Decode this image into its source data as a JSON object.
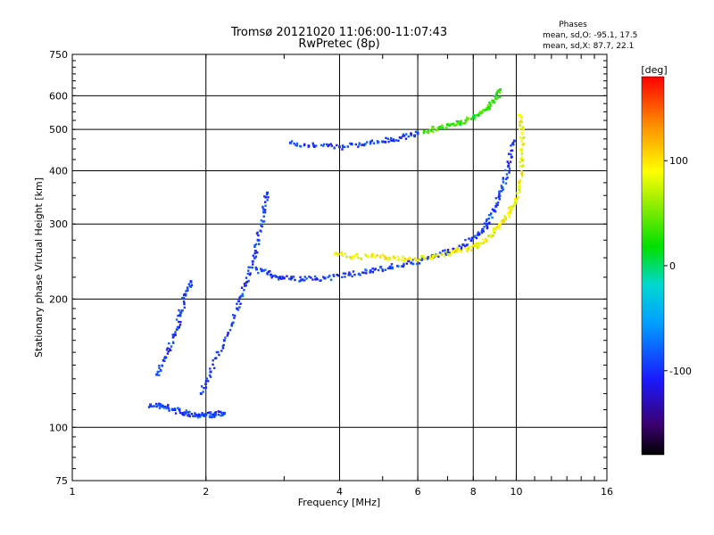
{
  "chart_data": {
    "type": "scatter",
    "title": "Tromsø 20121020 11:06:00-11:07:43",
    "subtitle": "RwPretec (8p)",
    "xlabel": "Frequency [MHz]",
    "ylabel": "Stationary phase Virtual Height [km]",
    "x_scale": "log",
    "y_scale": "log",
    "xlim": [
      1,
      16
    ],
    "ylim": [
      75,
      750
    ],
    "x_ticks": [
      1,
      2,
      4,
      6,
      8,
      10,
      16
    ],
    "x_tick_labels": [
      "1",
      "2",
      "4",
      "6",
      "8",
      "10",
      "16"
    ],
    "y_ticks": [
      75,
      100,
      200,
      300,
      400,
      500,
      600,
      750
    ],
    "y_tick_labels": [
      "75",
      "100",
      "200",
      "300",
      "400",
      "500",
      "600",
      "750"
    ],
    "grid": true,
    "phase_box": {
      "heading": "Phases",
      "line_o": "mean, sd,O: -95.1, 17.5",
      "line_x": "mean, sd,X:  87.7, 22.1"
    },
    "colorbar": {
      "label": "[deg]",
      "range": [
        -180,
        180
      ],
      "ticks": [
        100,
        0,
        -100
      ],
      "tick_labels": [
        "100",
        "0",
        "-100"
      ]
    },
    "traces": [
      {
        "name": "",
        "phase": -95,
        "points": [
          [
            1.5,
            113
          ],
          [
            1.6,
            112
          ],
          [
            1.7,
            110
          ],
          [
            1.8,
            108
          ],
          [
            1.9,
            107
          ],
          [
            2.0,
            107
          ],
          [
            2.1,
            107
          ],
          [
            2.2,
            108
          ]
        ]
      },
      {
        "name": "",
        "phase": -95,
        "points": [
          [
            1.55,
            133
          ],
          [
            1.62,
            146
          ],
          [
            1.7,
            165
          ],
          [
            1.75,
            183
          ],
          [
            1.8,
            205
          ],
          [
            1.85,
            220
          ]
        ]
      },
      {
        "name": "",
        "phase": -95,
        "points": [
          [
            1.95,
            120
          ],
          [
            2.05,
            135
          ],
          [
            2.2,
            160
          ],
          [
            2.35,
            190
          ],
          [
            2.45,
            215
          ],
          [
            2.55,
            245
          ],
          [
            2.62,
            275
          ],
          [
            2.7,
            320
          ],
          [
            2.75,
            355
          ]
        ]
      },
      {
        "name": "",
        "phase": -95,
        "points": [
          [
            2.6,
            235
          ],
          [
            2.8,
            228
          ],
          [
            3.0,
            224
          ],
          [
            3.3,
            222
          ],
          [
            3.7,
            224
          ],
          [
            4.2,
            228
          ],
          [
            4.7,
            233
          ],
          [
            5.2,
            238
          ],
          [
            5.8,
            243
          ],
          [
            6.4,
            250
          ],
          [
            7.0,
            258
          ],
          [
            7.6,
            268
          ],
          [
            8.2,
            283
          ],
          [
            8.6,
            300
          ],
          [
            9.0,
            330
          ],
          [
            9.3,
            365
          ],
          [
            9.6,
            410
          ],
          [
            9.9,
            470
          ]
        ]
      },
      {
        "name": "",
        "phase": 90,
        "points": [
          [
            3.9,
            255
          ],
          [
            4.3,
            252
          ],
          [
            4.8,
            251
          ],
          [
            5.3,
            250
          ],
          [
            5.8,
            248
          ],
          [
            6.5,
            252
          ],
          [
            7.2,
            258
          ],
          [
            7.8,
            262
          ],
          [
            8.3,
            270
          ],
          [
            8.8,
            282
          ],
          [
            9.2,
            300
          ],
          [
            9.6,
            318
          ],
          [
            10.0,
            340
          ],
          [
            10.2,
            380
          ],
          [
            10.3,
            430
          ],
          [
            10.3,
            490
          ],
          [
            10.2,
            540
          ]
        ]
      },
      {
        "name": "",
        "phase": -95,
        "points": [
          [
            3.1,
            465
          ],
          [
            3.5,
            458
          ],
          [
            4.0,
            455
          ],
          [
            4.5,
            460
          ],
          [
            5.0,
            468
          ],
          [
            5.5,
            478
          ],
          [
            6.0,
            490
          ]
        ]
      },
      {
        "name": "",
        "phase": 30,
        "points": [
          [
            6.2,
            495
          ],
          [
            6.7,
            505
          ],
          [
            7.2,
            515
          ],
          [
            7.7,
            525
          ],
          [
            8.2,
            540
          ],
          [
            8.6,
            560
          ],
          [
            9.0,
            590
          ],
          [
            9.2,
            620
          ]
        ]
      }
    ]
  }
}
